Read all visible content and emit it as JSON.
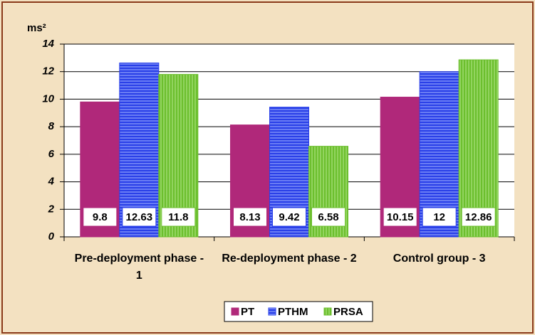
{
  "chart_data": {
    "type": "bar",
    "ylabel": "ms²",
    "categories": [
      "Pre-deployment phase - 1",
      "Re-deployment phase - 2",
      "Control group - 3"
    ],
    "series": [
      {
        "name": "PT",
        "color": "#b0287a",
        "values": [
          9.8,
          8.13,
          10.15
        ]
      },
      {
        "name": "PTHM",
        "color": "#2a40e8",
        "values": [
          12.63,
          9.42,
          12
        ]
      },
      {
        "name": "PRSA",
        "color": "#6cbf2e",
        "values": [
          11.8,
          6.58,
          12.86
        ]
      }
    ],
    "ylim": [
      0,
      14
    ],
    "yticks": [
      0,
      2,
      4,
      6,
      8,
      10,
      12,
      14
    ],
    "grid": true,
    "legend": "bottom"
  }
}
